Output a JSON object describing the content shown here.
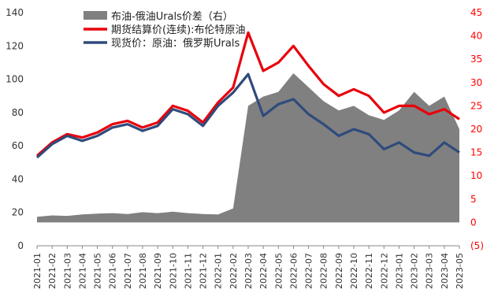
{
  "chart_data": {
    "type": "line",
    "title": "",
    "legend": [
      {
        "key": "spread",
        "label": "布油-俄油Urals价差（右）",
        "color": "#808080",
        "kind": "area"
      },
      {
        "key": "brent",
        "label": "期货结算价(连续):布伦特原油",
        "color": "#e8000b",
        "kind": "line"
      },
      {
        "key": "urals",
        "label": "现货价：原油：俄罗斯Urals",
        "color": "#2f4b7c",
        "kind": "line"
      }
    ],
    "legend_position": "top-center",
    "x_ticks": [
      "2021-01",
      "2021-02",
      "2021-03",
      "2021-04",
      "2021-05",
      "2021-06",
      "2021-07",
      "2021-08",
      "2021-09",
      "2021-10",
      "2021-11",
      "2021-12",
      "2022-01",
      "2022-02",
      "2022-03",
      "2022-04",
      "2022-05",
      "2022-06",
      "2022-07",
      "2022-08",
      "2022-09",
      "2022-10",
      "2022-11",
      "2022-12",
      "2023-01",
      "2023-02",
      "2023-03",
      "2023-04",
      "2023-05"
    ],
    "left_axis": {
      "ticks": [
        "0",
        "20",
        "40",
        "60",
        "80",
        "100",
        "120",
        "140"
      ],
      "ylim": [
        0,
        140
      ]
    },
    "right_axis": {
      "ticks": [
        "(5)",
        "0",
        "5",
        "10",
        "15",
        "20",
        "25",
        "30",
        "35",
        "40",
        "45"
      ],
      "ylim": [
        -5,
        45
      ]
    },
    "x": [
      "2021-01",
      "2021-02",
      "2021-03",
      "2021-04",
      "2021-05",
      "2021-06",
      "2021-07",
      "2021-08",
      "2021-09",
      "2021-10",
      "2021-11",
      "2021-12",
      "2022-01",
      "2022-02",
      "2022-03",
      "2022-04",
      "2022-05",
      "2022-06",
      "2022-07",
      "2022-08",
      "2022-09",
      "2022-10",
      "2022-11",
      "2022-12",
      "2023-01",
      "2023-02",
      "2023-03",
      "2023-04",
      "2023-05"
    ],
    "series": [
      {
        "name": "期货结算价(连续):布伦特原油",
        "key": "brent",
        "values": [
          54,
          62,
          67,
          65,
          68,
          73,
          75,
          71,
          74,
          84,
          81,
          74,
          86,
          95,
          128,
          105,
          110,
          120,
          108,
          97,
          90,
          94,
          90,
          80,
          84,
          84,
          79,
          82,
          76
        ]
      },
      {
        "name": "现货价：原油：俄罗斯Urals",
        "key": "urals",
        "values": [
          53,
          61,
          66,
          63,
          66,
          71,
          73,
          69,
          72,
          82,
          79,
          72,
          84,
          92,
          103,
          78,
          85,
          88,
          79,
          73,
          66,
          70,
          67,
          58,
          62,
          56,
          54,
          62,
          56
        ]
      },
      {
        "name": "布油-俄油Urals价差（右）",
        "key": "spread",
        "axis": "right",
        "values": [
          1.2,
          1.5,
          1.4,
          1.7,
          1.9,
          2.0,
          1.8,
          2.2,
          2.0,
          2.3,
          2.0,
          1.8,
          1.7,
          3.0,
          25.0,
          27.0,
          28.0,
          32.0,
          29.0,
          26.0,
          24.0,
          25.0,
          23.0,
          22.0,
          24.0,
          28.0,
          25.0,
          27.0,
          20.0
        ]
      }
    ]
  }
}
